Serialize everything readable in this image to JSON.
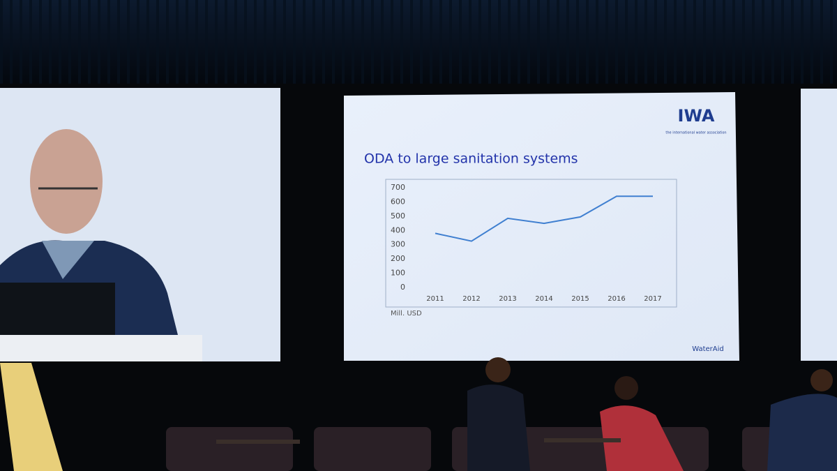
{
  "chart_data": {
    "type": "line",
    "title": "ODA to large sanitation systems",
    "categories": [
      "2011",
      "2012",
      "2013",
      "2014",
      "2015",
      "2016",
      "2017"
    ],
    "values": [
      380,
      325,
      485,
      450,
      495,
      640,
      640
    ],
    "color": "#3f7fd0",
    "ylim": [
      0,
      700
    ],
    "yticks": [
      0,
      100,
      200,
      300,
      400,
      500,
      600,
      700
    ],
    "ylabel": "Mill. USD",
    "grid": false
  },
  "slide": {
    "logo": "IWA",
    "logo_tagline": "the international water association",
    "footer_logo": "WaterAid"
  }
}
